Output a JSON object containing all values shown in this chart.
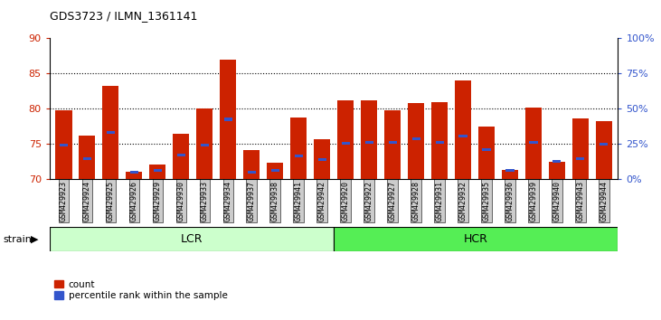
{
  "title": "GDS3723 / ILMN_1361141",
  "samples": [
    "GSM429923",
    "GSM429924",
    "GSM429925",
    "GSM429926",
    "GSM429929",
    "GSM429930",
    "GSM429933",
    "GSM429934",
    "GSM429937",
    "GSM429938",
    "GSM429941",
    "GSM429942",
    "GSM429920",
    "GSM429922",
    "GSM429927",
    "GSM429928",
    "GSM429931",
    "GSM429932",
    "GSM429935",
    "GSM429936",
    "GSM429939",
    "GSM429940",
    "GSM429943",
    "GSM429944"
  ],
  "count_values": [
    79.8,
    76.2,
    83.3,
    71.1,
    72.1,
    76.5,
    80.0,
    87.0,
    74.1,
    72.4,
    78.8,
    75.7,
    81.2,
    81.2,
    79.8,
    80.8,
    81.0,
    84.0,
    77.5,
    71.3,
    80.2,
    72.5,
    78.6,
    78.2
  ],
  "percentile_values": [
    74.9,
    72.9,
    76.7,
    71.05,
    71.2,
    73.4,
    74.9,
    78.5,
    71.05,
    71.2,
    73.3,
    72.8,
    75.1,
    75.2,
    75.2,
    75.8,
    75.2,
    76.1,
    74.2,
    71.3,
    75.2,
    72.5,
    72.9,
    75.0
  ],
  "ylim_left": [
    70,
    90
  ],
  "ylim_right": [
    0,
    100
  ],
  "yticks_left": [
    70,
    75,
    80,
    85,
    90
  ],
  "yticks_right": [
    0,
    25,
    50,
    75,
    100
  ],
  "ytick_labels_right": [
    "0%",
    "25%",
    "50%",
    "75%",
    "100%"
  ],
  "group_lcr_count": 12,
  "bar_color": "#cc2200",
  "dot_color": "#3355cc",
  "lcr_color": "#ccffcc",
  "hcr_color": "#55ee55",
  "tick_bg_color": "#cccccc",
  "background_color": "#ffffff"
}
